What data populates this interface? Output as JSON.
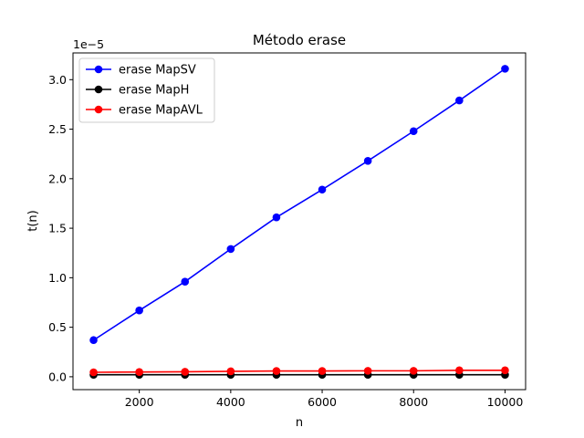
{
  "chart_data": {
    "type": "line",
    "title": "Método erase",
    "xlabel": "n",
    "ylabel": "t(n)",
    "y_offset_label": "1e−5",
    "y_scale_multiplier": 1e-05,
    "x": [
      1000,
      2000,
      3000,
      4000,
      5000,
      6000,
      7000,
      8000,
      9000,
      10000
    ],
    "xlim": [
      550,
      10450
    ],
    "ylim": [
      -0.13,
      3.27
    ],
    "xticks": [
      2000,
      4000,
      6000,
      8000,
      10000
    ],
    "xtick_labels": [
      "2000",
      "4000",
      "6000",
      "8000",
      "10000"
    ],
    "yticks": [
      0.0,
      0.5,
      1.0,
      1.5,
      2.0,
      2.5,
      3.0
    ],
    "ytick_labels": [
      "0.0",
      "0.5",
      "1.0",
      "1.5",
      "2.0",
      "2.5",
      "3.0"
    ],
    "grid": false,
    "legend_position": "top-left",
    "series": [
      {
        "name": "erase MapSV",
        "color": "#0000ff",
        "marker": "circle",
        "values": [
          0.37,
          0.67,
          0.96,
          1.29,
          1.61,
          1.89,
          2.18,
          2.48,
          2.79,
          3.11
        ]
      },
      {
        "name": "erase MapH",
        "color": "#000000",
        "marker": "circle",
        "values": [
          0.02,
          0.02,
          0.02,
          0.02,
          0.02,
          0.02,
          0.02,
          0.02,
          0.02,
          0.02
        ]
      },
      {
        "name": "erase MapAVL",
        "color": "#ff0000",
        "marker": "circle",
        "values": [
          0.045,
          0.048,
          0.05,
          0.055,
          0.058,
          0.058,
          0.06,
          0.06,
          0.065,
          0.065
        ]
      }
    ]
  }
}
